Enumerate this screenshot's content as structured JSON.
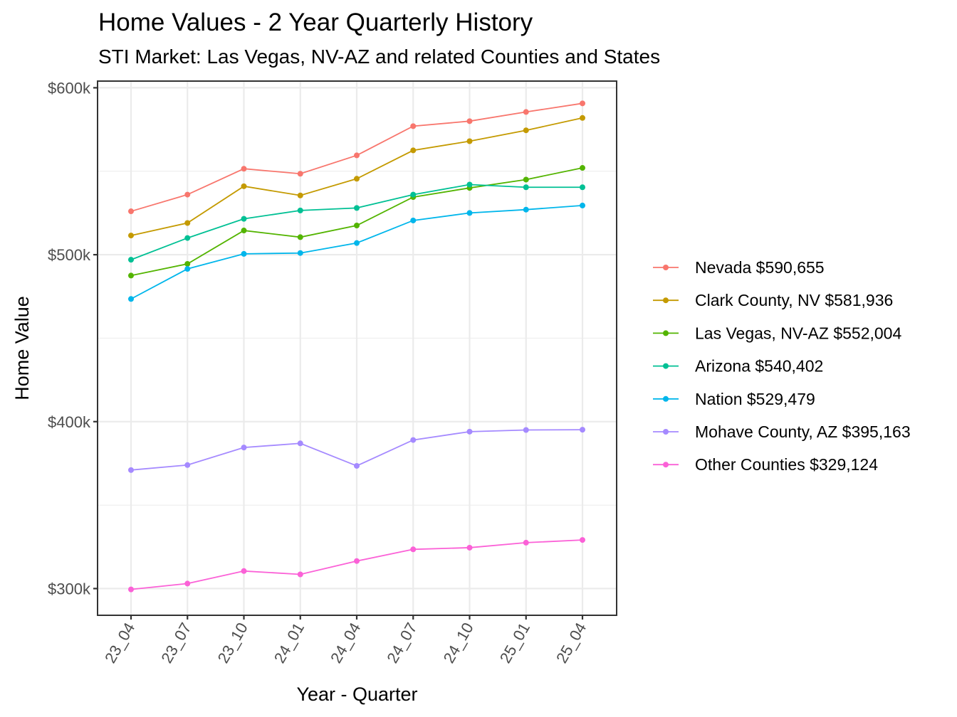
{
  "chart_data": {
    "type": "line",
    "title": "Home Values - 2 Year Quarterly History",
    "subtitle": "STI Market: Las Vegas, NV-AZ and related Counties and States",
    "xlabel": "Year - Quarter",
    "ylabel": "Home Value",
    "categories": [
      "23_04",
      "23_07",
      "23_10",
      "24_01",
      "24_04",
      "24_07",
      "24_10",
      "25_01",
      "25_04"
    ],
    "ylim": [
      284000,
      604000
    ],
    "yticks": [
      300000,
      400000,
      500000,
      600000
    ],
    "ytick_labels": [
      "$300k",
      "$400k",
      "$500k",
      "$600k"
    ],
    "grid": true,
    "legend_position": "right",
    "series": [
      {
        "name": "Nevada",
        "legend_label": "Nevada $590,655",
        "color": "#F8766D",
        "values": [
          526000,
          536000,
          551500,
          548500,
          559500,
          577000,
          580000,
          585500,
          590655
        ]
      },
      {
        "name": "Clark County, NV",
        "legend_label": "Clark County, NV $581,936",
        "color": "#C49A00",
        "values": [
          511500,
          519000,
          541000,
          535500,
          545500,
          562500,
          568000,
          574500,
          581936
        ]
      },
      {
        "name": "Las Vegas, NV-AZ",
        "legend_label": "Las Vegas, NV-AZ $552,004",
        "color": "#53B400",
        "values": [
          487500,
          494500,
          514500,
          510500,
          517500,
          534500,
          540000,
          545000,
          552004
        ]
      },
      {
        "name": "Arizona",
        "legend_label": "Arizona $540,402",
        "color": "#00C094",
        "values": [
          497000,
          510000,
          521500,
          526500,
          528000,
          536000,
          542000,
          540402,
          540402
        ]
      },
      {
        "name": "Nation",
        "legend_label": "Nation $529,479",
        "color": "#00B6EB",
        "values": [
          473500,
          491500,
          500500,
          501000,
          507000,
          520500,
          525000,
          527000,
          529479
        ]
      },
      {
        "name": "Mohave County, AZ",
        "legend_label": "Mohave County, AZ $395,163",
        "color": "#A58AFF",
        "values": [
          371000,
          374000,
          384500,
          387000,
          373500,
          389000,
          394000,
          395000,
          395163
        ]
      },
      {
        "name": "Other Counties",
        "legend_label": "Other Counties $329,124",
        "color": "#FB61D7",
        "values": [
          299500,
          303000,
          310500,
          308500,
          316500,
          323500,
          324500,
          327500,
          329124
        ]
      }
    ]
  }
}
